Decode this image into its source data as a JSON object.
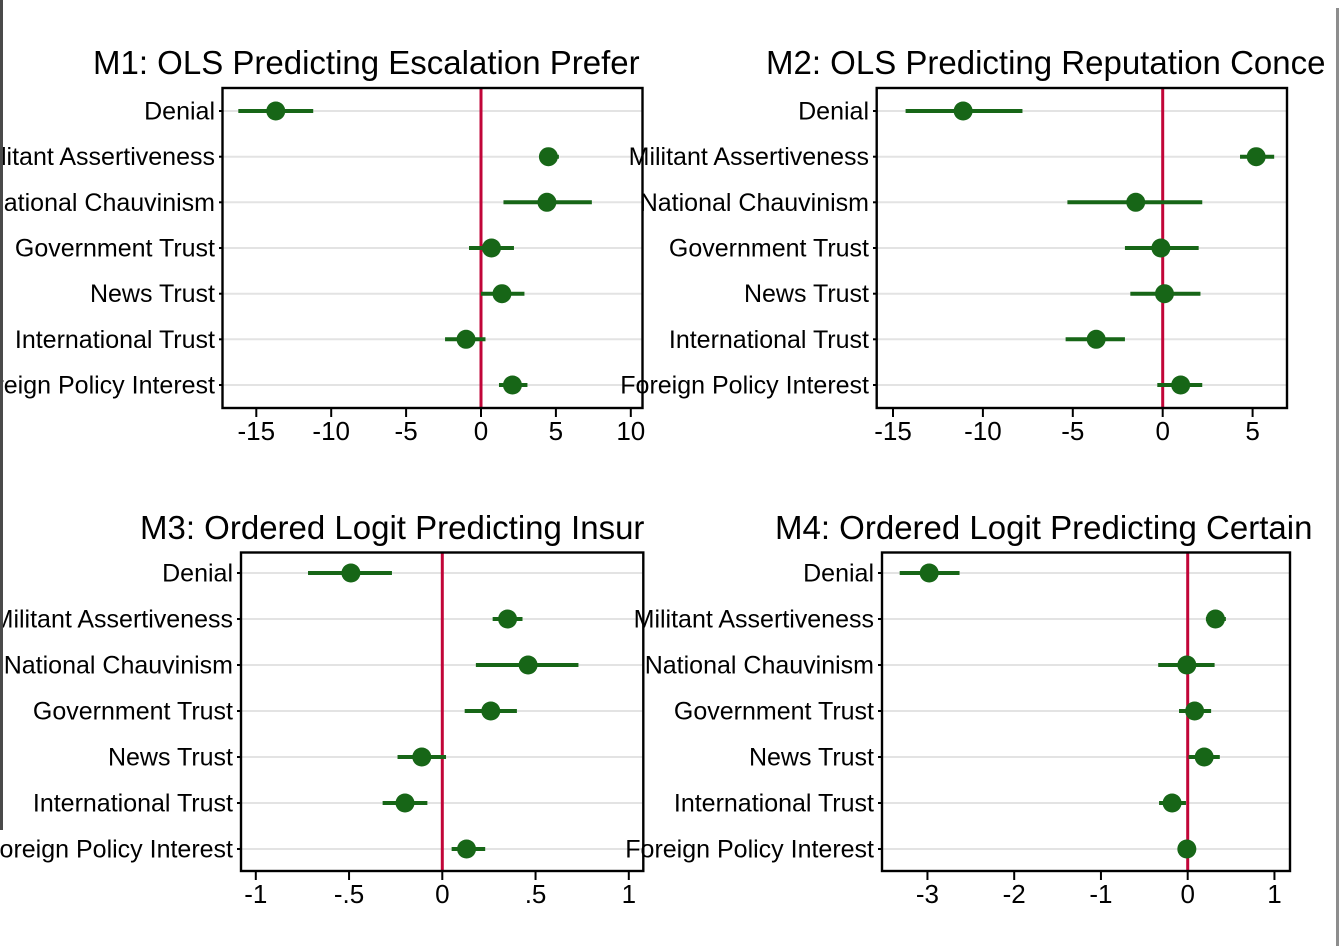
{
  "figure": {
    "background": "#ffffff",
    "style": {
      "marker_color": "#176617",
      "ci_color": "#176617",
      "zero_line_color": "#c10538",
      "grid_color": "#e3e3e3",
      "axis_color": "#000000",
      "text_color": "#000000"
    }
  },
  "chart_data": [
    {
      "id": "M1",
      "type": "scatter",
      "title": "M1: OLS Predicting Escalation Prefer",
      "categories": [
        "Denial",
        "Militant Assertiveness",
        "National Chauvinism",
        "Government Trust",
        "News Trust",
        "International Trust",
        "Foreign Policy Interest"
      ],
      "series": [
        {
          "name": "coefficient",
          "estimates": [
            -13.7,
            4.5,
            4.4,
            0.7,
            1.4,
            -1.0,
            2.1
          ],
          "ci_low": [
            -16.2,
            3.9,
            1.5,
            -0.8,
            0.0,
            -2.4,
            1.2
          ],
          "ci_high": [
            -11.2,
            5.2,
            7.4,
            2.2,
            2.9,
            0.3,
            3.1
          ]
        }
      ],
      "x_ticks": [
        -15,
        -10,
        -5,
        0,
        5,
        10
      ],
      "x_tick_labels": [
        "-15",
        "-10",
        "-5",
        "0",
        "5",
        "10"
      ],
      "xlim": [
        -17.3,
        10.8
      ],
      "zero_line_x": 0,
      "grid": true,
      "legend": "none"
    },
    {
      "id": "M2",
      "type": "scatter",
      "title": "M2: OLS Predicting Reputation Conce",
      "categories": [
        "Denial",
        "Militant Assertiveness",
        "National Chauvinism",
        "Government Trust",
        "News Trust",
        "International Trust",
        "Foreign Policy Interest"
      ],
      "series": [
        {
          "name": "coefficient",
          "estimates": [
            -11.1,
            5.2,
            -1.5,
            -0.1,
            0.1,
            -3.7,
            1.0
          ],
          "ci_low": [
            -14.3,
            4.3,
            -5.3,
            -2.1,
            -1.8,
            -5.4,
            -0.3
          ],
          "ci_high": [
            -7.8,
            6.2,
            2.2,
            2.0,
            2.1,
            -2.1,
            2.2
          ]
        }
      ],
      "x_ticks": [
        -15,
        -10,
        -5,
        0,
        5
      ],
      "x_tick_labels": [
        "-15",
        "-10",
        "-5",
        "0",
        "5"
      ],
      "xlim": [
        -15.9,
        6.9
      ],
      "zero_line_x": 0,
      "grid": true,
      "legend": "none"
    },
    {
      "id": "M3",
      "type": "scatter",
      "title": "M3: Ordered Logit Predicting Insur",
      "categories": [
        "Denial",
        "Militant Assertiveness",
        "National Chauvinism",
        "Government Trust",
        "News Trust",
        "International Trust",
        "Foreign Policy Interest"
      ],
      "series": [
        {
          "name": "coefficient",
          "estimates": [
            -0.49,
            0.35,
            0.46,
            0.26,
            -0.11,
            -0.2,
            0.13
          ],
          "ci_low": [
            -0.72,
            0.27,
            0.18,
            0.12,
            -0.24,
            -0.32,
            0.05
          ],
          "ci_high": [
            -0.27,
            0.43,
            0.73,
            0.4,
            0.02,
            -0.08,
            0.23
          ]
        }
      ],
      "x_ticks": [
        -1,
        -0.5,
        0,
        0.5,
        1
      ],
      "x_tick_labels": [
        "-1",
        "-.5",
        "0",
        ".5",
        "1"
      ],
      "xlim": [
        -1.08,
        1.08
      ],
      "zero_line_x": 0,
      "grid": true,
      "legend": "none"
    },
    {
      "id": "M4",
      "type": "scatter",
      "title": "M4: Ordered Logit Predicting Certain",
      "categories": [
        "Denial",
        "Militant Assertiveness",
        "National Chauvinism",
        "Government Trust",
        "News Trust",
        "International Trust",
        "Foreign Policy Interest"
      ],
      "series": [
        {
          "name": "coefficient",
          "estimates": [
            -2.98,
            0.32,
            -0.01,
            0.08,
            0.19,
            -0.18,
            -0.01
          ],
          "ci_low": [
            -3.32,
            0.21,
            -0.34,
            -0.1,
            0.01,
            -0.33,
            -0.11
          ],
          "ci_high": [
            -2.63,
            0.44,
            0.31,
            0.27,
            0.37,
            -0.02,
            0.08
          ]
        }
      ],
      "x_ticks": [
        -3,
        -2,
        -1,
        0,
        1
      ],
      "x_tick_labels": [
        "-3",
        "-2",
        "-1",
        "0",
        "1"
      ],
      "xlim": [
        -3.52,
        1.18
      ],
      "zero_line_x": 0,
      "grid": true,
      "legend": "none"
    }
  ]
}
